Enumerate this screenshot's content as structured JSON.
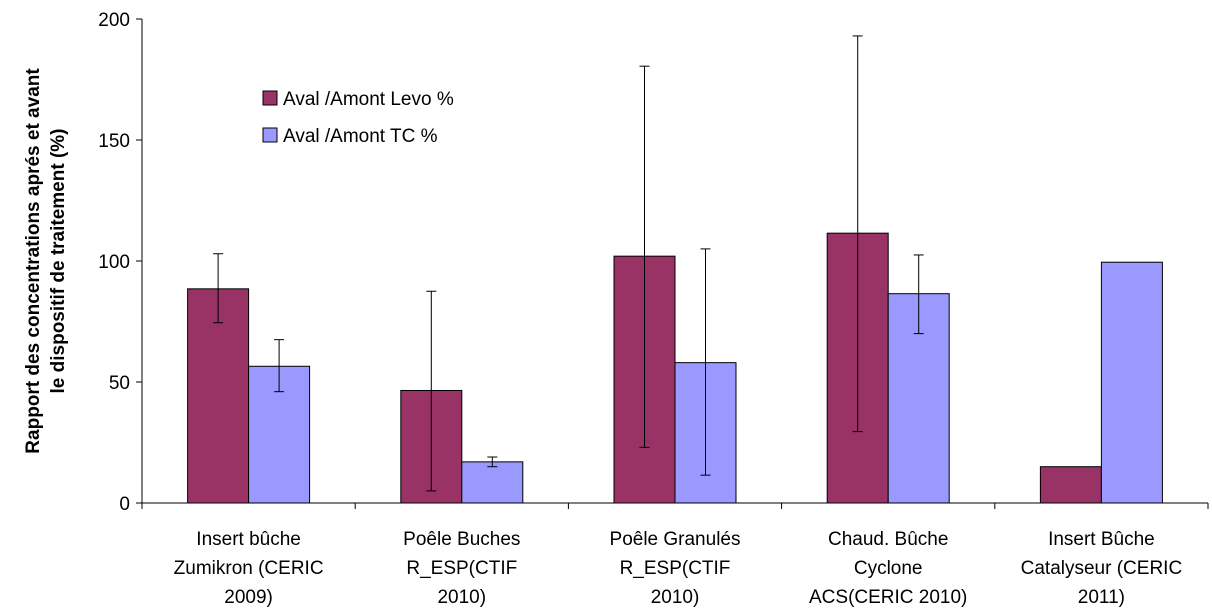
{
  "chart_data": {
    "type": "bar",
    "title": "",
    "xlabel": "",
    "ylabel_lines": [
      "Rapport des concentrations aprés et avant",
      "le dispositif de traitement (%)"
    ],
    "ylim": [
      0,
      200
    ],
    "yticks": [
      0,
      50,
      100,
      150,
      200
    ],
    "grid": false,
    "legend_position": "top-left",
    "categories": [
      [
        "Insert bûche",
        "Zumikron (CERIC",
        "2009)"
      ],
      [
        "Poêle Buches",
        "R_ESP(CTIF",
        "2010)"
      ],
      [
        "Poêle Granulés",
        "R_ESP(CTIF",
        "2010)"
      ],
      [
        "Chaud. Bûche",
        "Cyclone",
        "ACS(CERIC 2010)"
      ],
      [
        "Insert Bûche",
        "Catalyseur (CERIC",
        "2011)"
      ]
    ],
    "series": [
      {
        "name": "Aval /Amont Levo %",
        "color": "#993366",
        "values": [
          88.5,
          46.5,
          102,
          111.5,
          15
        ],
        "error_low": [
          74.5,
          5,
          23,
          29.5,
          null
        ],
        "error_high": [
          103,
          87.5,
          180.5,
          193,
          null
        ]
      },
      {
        "name": "Aval /Amont TC %",
        "color": "#9999ff",
        "values": [
          56.5,
          17,
          58,
          86.5,
          99.5
        ],
        "error_low": [
          46,
          15,
          11.5,
          70,
          null
        ],
        "error_high": [
          67.5,
          19,
          105,
          102.5,
          null
        ]
      }
    ]
  }
}
